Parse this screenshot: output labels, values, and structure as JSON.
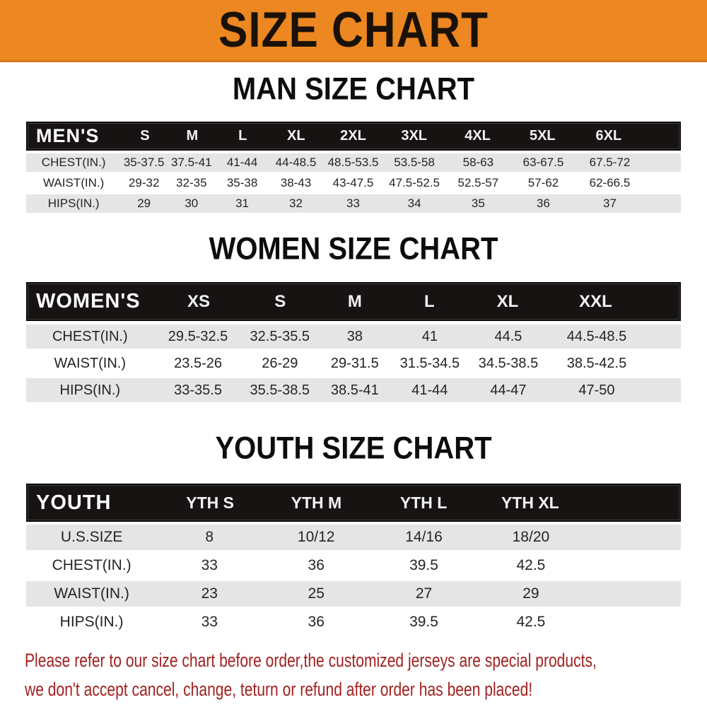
{
  "banner": {
    "title": "SIZE CHART",
    "bg_color": "#EC8721",
    "text_color": "#1A1208"
  },
  "sections": [
    {
      "title": "MAN SIZE CHART",
      "header_label": "MEN'S",
      "columns": [
        "S",
        "M",
        "L",
        "XL",
        "2XL",
        "3XL",
        "4XL",
        "5XL",
        "6XL"
      ],
      "rows": [
        {
          "label": "CHEST(IN.)",
          "values": [
            "35-37.5",
            "37.5-41",
            "41-44",
            "44-48.5",
            "48.5-53.5",
            "53.5-58",
            "58-63",
            "63-67.5",
            "67.5-72"
          ]
        },
        {
          "label": "WAIST(IN.)",
          "values": [
            "29-32",
            "32-35",
            "35-38",
            "38-43",
            "43-47.5",
            "47.5-52.5",
            "52.5-57",
            "57-62",
            "62-66.5"
          ]
        },
        {
          "label": "HIPS(IN.)",
          "values": [
            "29",
            "30",
            "31",
            "32",
            "33",
            "34",
            "35",
            "36",
            "37"
          ]
        }
      ]
    },
    {
      "title": "WOMEN SIZE CHART",
      "header_label": "WOMEN'S",
      "columns": [
        "XS",
        "S",
        "M",
        "L",
        "XL",
        "XXL"
      ],
      "rows": [
        {
          "label": "CHEST(IN.)",
          "values": [
            "29.5-32.5",
            "32.5-35.5",
            "38",
            "41",
            "44.5",
            "44.5-48.5"
          ]
        },
        {
          "label": "WAIST(IN.)",
          "values": [
            "23.5-26",
            "26-29",
            "29-31.5",
            "31.5-34.5",
            "34.5-38.5",
            "38.5-42.5"
          ]
        },
        {
          "label": "HIPS(IN.)",
          "values": [
            "33-35.5",
            "35.5-38.5",
            "38.5-41",
            "41-44",
            "44-47",
            "47-50"
          ]
        }
      ]
    },
    {
      "title": "YOUTH SIZE CHART",
      "header_label": "YOUTH",
      "columns": [
        "YTH S",
        "YTH M",
        "YTH L",
        "YTH XL"
      ],
      "rows": [
        {
          "label": "U.S.SIZE",
          "values": [
            "8",
            "10/12",
            "14/16",
            "18/20"
          ]
        },
        {
          "label": "CHEST(IN.)",
          "values": [
            "33",
            "36",
            "39.5",
            "42.5"
          ]
        },
        {
          "label": "WAIST(IN.)",
          "values": [
            "23",
            "25",
            "27",
            "29"
          ]
        },
        {
          "label": "HIPS(IN.)",
          "values": [
            "33",
            "36",
            "39.5",
            "42.5"
          ]
        }
      ]
    }
  ],
  "footer": {
    "line1": "Please refer to our size chart before order,the customized jerseys are special products,",
    "line2": "we don't accept cancel, change, teturn or refund after order has been placed!",
    "text_color": "#A22121"
  },
  "colors": {
    "banner_orange": "#EC8721",
    "header_bar": "#171313",
    "row_gray": "#E6E5E5",
    "row_white": "#FFFFFF",
    "table_text": "#242424"
  }
}
